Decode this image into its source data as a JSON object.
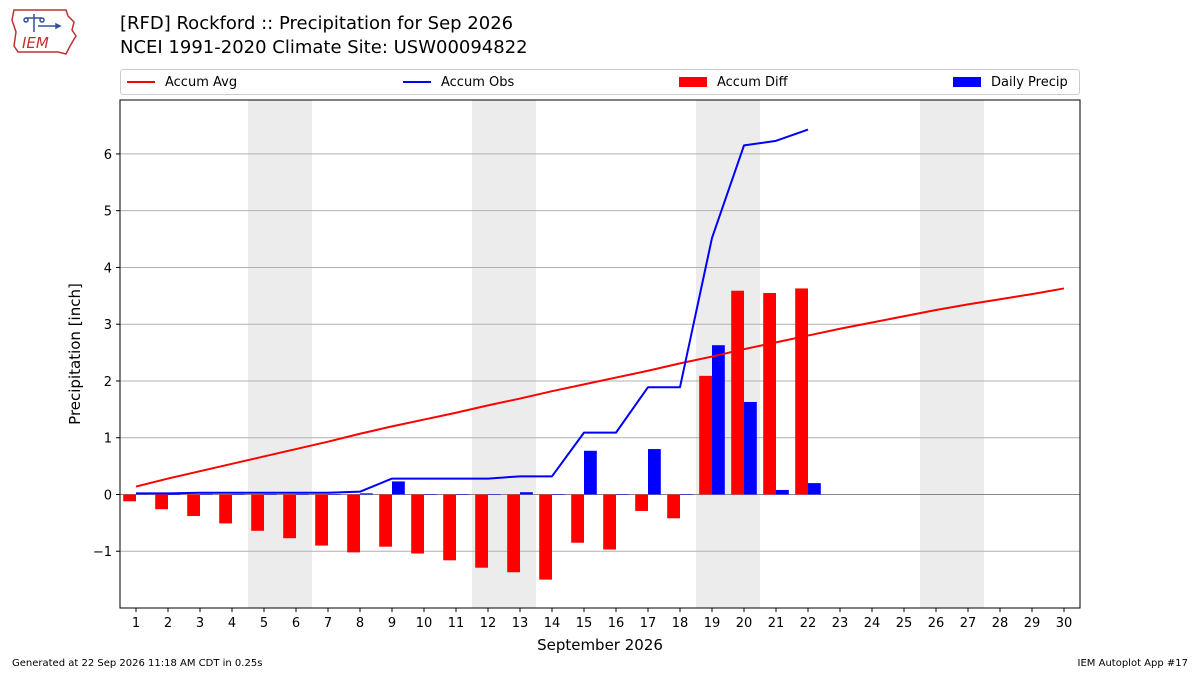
{
  "header": {
    "title_line1": "[RFD] Rockford :: Precipitation for Sep 2026",
    "title_line2": "NCEI 1991-2020 Climate Site: USW00094822",
    "logo_text": "IEM"
  },
  "footer": {
    "generated": "Generated at 22 Sep 2026 11:18 AM CDT in 0.25s",
    "app": "IEM Autoplot App #17"
  },
  "colors": {
    "avg": "#ff0000",
    "obs": "#0000ff",
    "diff": "#ff0000",
    "daily": "#0000ff",
    "weekend_shade": "#ececec",
    "grid": "#b0b0b0"
  },
  "legend": {
    "accum_avg": "Accum Avg",
    "accum_obs": "Accum Obs",
    "accum_diff": "Accum Diff",
    "daily_precip": "Daily Precip"
  },
  "chart_data": {
    "type": "bar",
    "title": "[RFD] Rockford :: Precipitation for Sep 2026",
    "xlabel": "September 2026",
    "ylabel": "Precipitation [inch]",
    "xlim": [
      0.5,
      30.5
    ],
    "ylim": [
      -2.0,
      6.95
    ],
    "yticks": [
      -1,
      0,
      1,
      2,
      3,
      4,
      5,
      6
    ],
    "ytick_labels": [
      "−1",
      "0",
      "1",
      "2",
      "3",
      "4",
      "5",
      "6"
    ],
    "grid": "horizontal",
    "legend_position": "top",
    "weekend_shading": [
      [
        4.5,
        6.5
      ],
      [
        11.5,
        13.5
      ],
      [
        18.5,
        20.5
      ],
      [
        25.5,
        27.5
      ]
    ],
    "days": [
      1,
      2,
      3,
      4,
      5,
      6,
      7,
      8,
      9,
      10,
      11,
      12,
      13,
      14,
      15,
      16,
      17,
      18,
      19,
      20,
      21,
      22,
      23,
      24,
      25,
      26,
      27,
      28,
      29,
      30
    ],
    "series": [
      {
        "name": "Accum Avg",
        "kind": "line",
        "x": [
          1,
          2,
          3,
          4,
          5,
          6,
          7,
          8,
          9,
          10,
          11,
          12,
          13,
          14,
          15,
          16,
          17,
          18,
          19,
          20,
          21,
          22,
          23,
          24,
          25,
          26,
          27,
          28,
          29,
          30
        ],
        "values": [
          0.14,
          0.28,
          0.41,
          0.54,
          0.67,
          0.8,
          0.93,
          1.07,
          1.2,
          1.32,
          1.44,
          1.57,
          1.69,
          1.82,
          1.94,
          2.06,
          2.18,
          2.31,
          2.43,
          2.56,
          2.68,
          2.8,
          2.92,
          3.03,
          3.14,
          3.25,
          3.35,
          3.44,
          3.53,
          3.63
        ]
      },
      {
        "name": "Accum Obs",
        "kind": "line",
        "x": [
          1,
          2,
          3,
          4,
          5,
          6,
          7,
          8,
          9,
          10,
          11,
          12,
          13,
          14,
          15,
          16,
          17,
          18,
          19,
          20,
          21,
          22
        ],
        "values": [
          0.02,
          0.02,
          0.03,
          0.03,
          0.03,
          0.03,
          0.03,
          0.05,
          0.28,
          0.28,
          0.28,
          0.28,
          0.32,
          0.32,
          1.09,
          1.09,
          1.89,
          1.89,
          4.52,
          6.15,
          6.23,
          6.43
        ]
      },
      {
        "name": "Accum Diff",
        "kind": "bar",
        "x": [
          1,
          2,
          3,
          4,
          5,
          6,
          7,
          8,
          9,
          10,
          11,
          12,
          13,
          14,
          15,
          16,
          17,
          18,
          19,
          20,
          21,
          22
        ],
        "values": [
          -0.12,
          -0.26,
          -0.38,
          -0.51,
          -0.64,
          -0.77,
          -0.9,
          -1.02,
          -0.92,
          -1.04,
          -1.16,
          -1.29,
          -1.37,
          -1.5,
          -0.85,
          -0.97,
          -0.29,
          -0.42,
          2.09,
          3.59,
          3.55,
          3.63
        ]
      },
      {
        "name": "Daily Precip",
        "kind": "bar",
        "x": [
          1,
          2,
          3,
          4,
          5,
          6,
          7,
          8,
          9,
          10,
          11,
          12,
          13,
          14,
          15,
          16,
          17,
          18,
          19,
          20,
          21,
          22
        ],
        "values": [
          0.01,
          0.0,
          0.01,
          0.0,
          0.0,
          0.0,
          0.0,
          0.02,
          0.23,
          0.0,
          0.0,
          0.0,
          0.04,
          0.0,
          0.77,
          0.0,
          0.8,
          0.0,
          2.63,
          1.63,
          0.08,
          0.2
        ]
      }
    ]
  }
}
